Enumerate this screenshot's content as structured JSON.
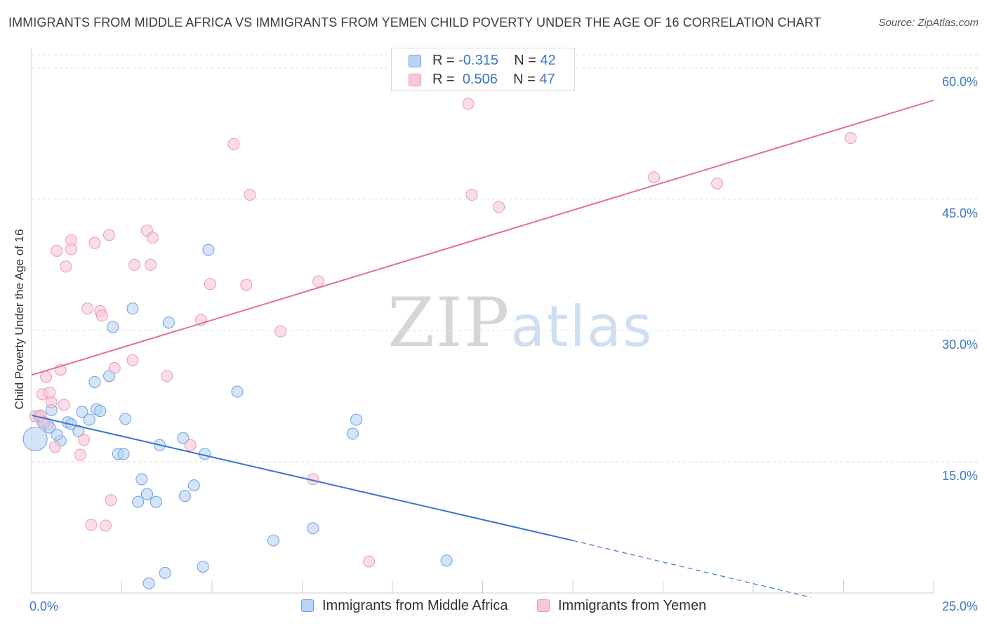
{
  "title": "IMMIGRANTS FROM MIDDLE AFRICA VS IMMIGRANTS FROM YEMEN CHILD POVERTY UNDER THE AGE OF 16 CORRELATION CHART",
  "source": "Source: ZipAtlas.com",
  "watermark": {
    "zip": "ZIP",
    "atlas": "atlas"
  },
  "legend": {
    "r_label": "R =",
    "n_label": "N =",
    "series": [
      {
        "r": "-0.315",
        "n": "42"
      },
      {
        "r": "0.506",
        "n": "47"
      }
    ]
  },
  "colors": {
    "blue_fill": "#b9d4f5",
    "blue_stroke": "#6a9fe0",
    "blue_line": "#3a76d0",
    "pink_fill": "#f9c7d6",
    "pink_stroke": "#e999b2",
    "pink_line": "#e0709a",
    "grid": "#dedede",
    "tick_label": "#3a76c8"
  },
  "chart_data": {
    "type": "scatter",
    "title": "IMMIGRANTS FROM MIDDLE AFRICA VS IMMIGRANTS FROM YEMEN CHILD POVERTY UNDER THE AGE OF 16 CORRELATION CHART",
    "xlabel": "",
    "ylabel": "Child Poverty Under the Age of 16",
    "xlim": [
      0,
      25
    ],
    "ylim": [
      0,
      61.5
    ],
    "x_tick_labels": [
      "0.0%",
      "25.0%"
    ],
    "y_ticks": [
      15,
      30,
      45,
      60
    ],
    "y_tick_labels": [
      "15.0%",
      "30.0%",
      "45.0%",
      "60.0%"
    ],
    "grid": true,
    "legend_position": "top-center",
    "series": [
      {
        "name": "Immigrants from Middle Africa",
        "color": "#6a9fe0",
        "points": [
          [
            0.1,
            17.6
          ],
          [
            0.3,
            19.6
          ],
          [
            0.45,
            19.3
          ],
          [
            0.5,
            18.9
          ],
          [
            0.55,
            20.9
          ],
          [
            0.8,
            17.4
          ],
          [
            0.7,
            18.1
          ],
          [
            1.0,
            19.5
          ],
          [
            1.1,
            19.3
          ],
          [
            1.3,
            18.5
          ],
          [
            1.4,
            20.7
          ],
          [
            1.6,
            19.8
          ],
          [
            1.8,
            21.0
          ],
          [
            1.9,
            20.8
          ],
          [
            1.75,
            24.1
          ],
          [
            2.15,
            24.8
          ],
          [
            2.25,
            30.4
          ],
          [
            2.6,
            19.9
          ],
          [
            2.4,
            15.9
          ],
          [
            2.55,
            15.9
          ],
          [
            2.8,
            32.5
          ],
          [
            2.95,
            10.4
          ],
          [
            3.05,
            13.0
          ],
          [
            3.2,
            11.3
          ],
          [
            3.45,
            10.4
          ],
          [
            3.55,
            16.9
          ],
          [
            3.8,
            30.9
          ],
          [
            4.2,
            17.7
          ],
          [
            4.25,
            11.1
          ],
          [
            4.5,
            12.3
          ],
          [
            4.8,
            15.9
          ],
          [
            4.9,
            39.2
          ],
          [
            4.75,
            3.0
          ],
          [
            5.7,
            23.0
          ],
          [
            6.7,
            6.0
          ],
          [
            7.8,
            7.4
          ],
          [
            8.9,
            18.2
          ],
          [
            9.0,
            19.8
          ],
          [
            11.5,
            3.7
          ],
          [
            3.25,
            1.1
          ],
          [
            3.7,
            2.3
          ],
          [
            0.2,
            20.2
          ]
        ]
      },
      {
        "name": "Immigrants from Yemen",
        "color": "#e999b2",
        "points": [
          [
            0.1,
            20.2
          ],
          [
            0.25,
            20.3
          ],
          [
            0.3,
            22.7
          ],
          [
            0.35,
            19.5
          ],
          [
            0.4,
            24.7
          ],
          [
            0.55,
            21.8
          ],
          [
            0.5,
            22.9
          ],
          [
            0.65,
            16.7
          ],
          [
            0.7,
            39.1
          ],
          [
            0.8,
            25.5
          ],
          [
            0.9,
            21.5
          ],
          [
            0.95,
            37.3
          ],
          [
            1.1,
            40.3
          ],
          [
            1.1,
            39.3
          ],
          [
            1.35,
            15.8
          ],
          [
            1.45,
            17.5
          ],
          [
            1.55,
            32.5
          ],
          [
            1.65,
            7.8
          ],
          [
            1.75,
            40.0
          ],
          [
            1.9,
            32.2
          ],
          [
            1.95,
            31.7
          ],
          [
            2.05,
            7.7
          ],
          [
            2.15,
            40.9
          ],
          [
            2.2,
            10.6
          ],
          [
            2.3,
            25.7
          ],
          [
            2.8,
            26.6
          ],
          [
            2.85,
            37.5
          ],
          [
            3.2,
            41.4
          ],
          [
            3.3,
            37.5
          ],
          [
            3.35,
            40.6
          ],
          [
            3.75,
            24.8
          ],
          [
            4.4,
            16.9
          ],
          [
            4.7,
            31.2
          ],
          [
            4.95,
            35.3
          ],
          [
            5.6,
            51.3
          ],
          [
            5.95,
            35.2
          ],
          [
            6.05,
            45.5
          ],
          [
            6.9,
            29.9
          ],
          [
            7.8,
            13.0
          ],
          [
            7.95,
            35.6
          ],
          [
            9.35,
            3.6
          ],
          [
            12.1,
            55.9
          ],
          [
            12.2,
            45.5
          ],
          [
            12.95,
            44.1
          ],
          [
            17.25,
            47.5
          ],
          [
            19.0,
            46.8
          ],
          [
            22.7,
            52.0
          ]
        ]
      }
    ],
    "trendlines": [
      {
        "series": "Immigrants from Middle Africa",
        "x": [
          0,
          15
        ],
        "y": [
          20.3,
          6.0
        ],
        "dashed_extension": {
          "x": [
            15,
            21.6
          ],
          "y": [
            6.0,
            -0.5
          ]
        }
      },
      {
        "series": "Immigrants from Yemen",
        "x": [
          0,
          25
        ],
        "y": [
          24.9,
          56.3
        ]
      }
    ]
  }
}
